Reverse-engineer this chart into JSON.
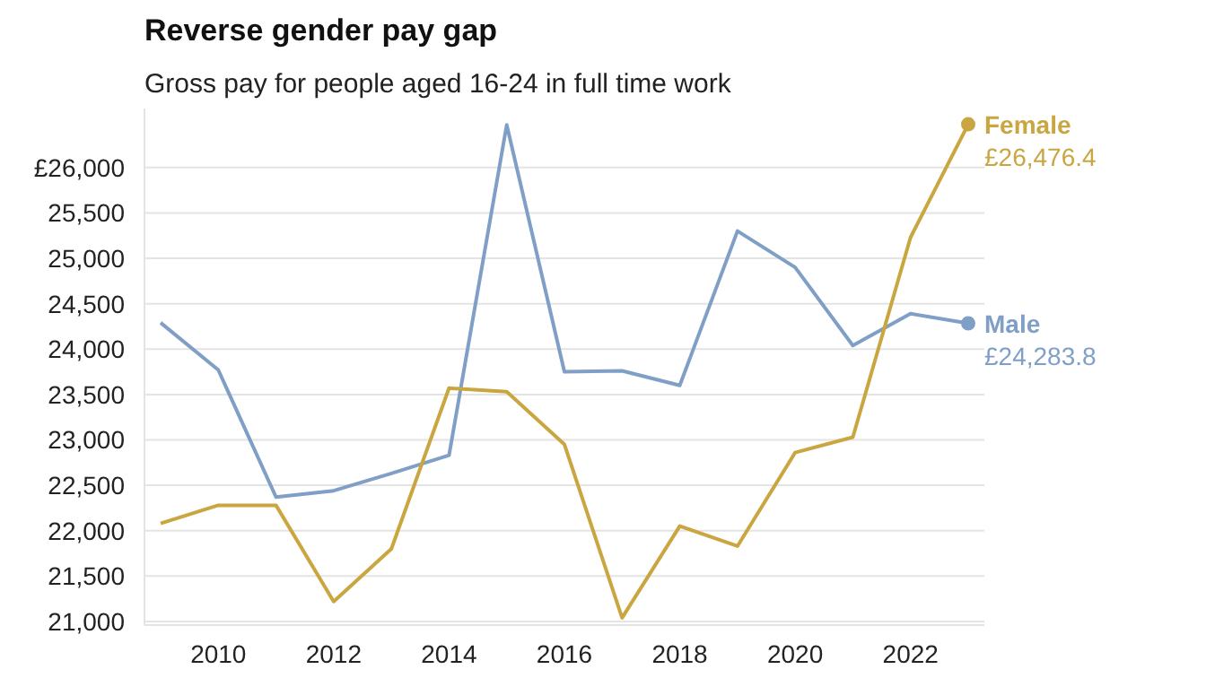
{
  "chart_data": {
    "type": "line",
    "title": "Reverse gender pay gap",
    "subtitle": "Gross pay for people aged 16-24 in full time work",
    "x": [
      2009,
      2010,
      2011,
      2012,
      2013,
      2014,
      2015,
      2016,
      2017,
      2018,
      2019,
      2020,
      2021,
      2022,
      2023
    ],
    "series": [
      {
        "name": "Male",
        "color": "#7f9fc6",
        "values": [
          24290,
          23770,
          22370,
          22440,
          22630,
          22830,
          26470,
          23750,
          23760,
          23600,
          25300,
          24900,
          24040,
          24390,
          24283.8
        ],
        "value_labels": [
          null,
          null,
          null,
          null,
          null,
          null,
          null,
          null,
          null,
          null,
          null,
          null,
          null,
          null,
          "£24,283.8"
        ]
      },
      {
        "name": "Female",
        "color": "#c9a640",
        "values": [
          22080,
          22280,
          22280,
          21220,
          21800,
          23570,
          23530,
          22950,
          21040,
          22050,
          21830,
          22860,
          23030,
          25230,
          26476.4
        ],
        "value_labels": [
          null,
          null,
          null,
          null,
          null,
          null,
          null,
          null,
          null,
          null,
          null,
          null,
          null,
          null,
          "£26,476.4"
        ]
      }
    ],
    "xlim": [
      2008.72,
      2023.28
    ],
    "ylim": [
      20960,
      26650
    ],
    "xticks": [
      2010,
      2012,
      2014,
      2016,
      2018,
      2020,
      2022
    ],
    "yticks": [
      {
        "value": 21000,
        "label": "21,000"
      },
      {
        "value": 21500,
        "label": "21,500"
      },
      {
        "value": 22000,
        "label": "22,000"
      },
      {
        "value": 22500,
        "label": "22,500"
      },
      {
        "value": 23000,
        "label": "23,000"
      },
      {
        "value": 23500,
        "label": "23,500"
      },
      {
        "value": 24000,
        "label": "24,000"
      },
      {
        "value": 24500,
        "label": "24,500"
      },
      {
        "value": 25000,
        "label": "25,000"
      },
      {
        "value": 25500,
        "label": "25,500"
      },
      {
        "value": 26000,
        "label": "£26,000"
      }
    ],
    "grid": "y",
    "marker": "none",
    "line_style": "solid"
  }
}
